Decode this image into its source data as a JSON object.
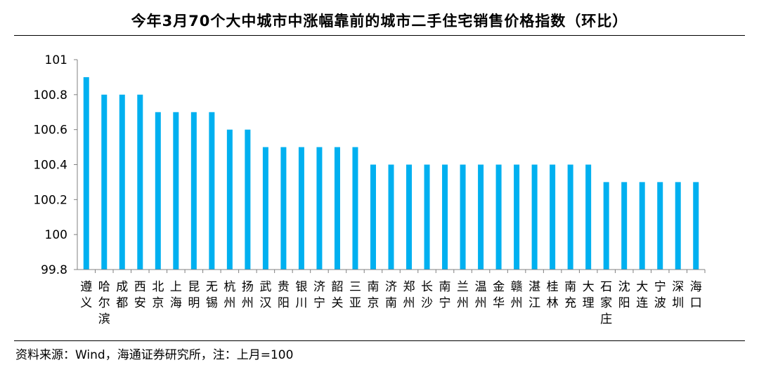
{
  "title": "今年3月70个大中城市中涨幅靠前的城市二手住宅销售价格指数（环比）",
  "footer": "资料来源：Wind，海通证券研究所，注：上月=100",
  "colors": {
    "bar": "#00B0F0",
    "axis": "#808080"
  },
  "chart_data": {
    "type": "bar",
    "title": "今年3月70个大中城市中涨幅靠前的城市二手住宅销售价格指数（环比）",
    "categories": [
      "遵义",
      "哈尔滨",
      "成都",
      "西安",
      "北京",
      "上海",
      "昆明",
      "无锡",
      "杭州",
      "扬州",
      "武汉",
      "贵阳",
      "银川",
      "济宁",
      "韶关",
      "三亚",
      "南京",
      "济南",
      "郑州",
      "长沙",
      "南宁",
      "兰州",
      "温州",
      "金华",
      "赣州",
      "湛江",
      "桂林",
      "南充",
      "大理",
      "石家庄",
      "沈阳",
      "大连",
      "宁波",
      "深圳",
      "海口"
    ],
    "values": [
      100.9,
      100.8,
      100.8,
      100.8,
      100.7,
      100.7,
      100.7,
      100.7,
      100.6,
      100.6,
      100.5,
      100.5,
      100.5,
      100.5,
      100.5,
      100.5,
      100.4,
      100.4,
      100.4,
      100.4,
      100.4,
      100.4,
      100.4,
      100.4,
      100.4,
      100.4,
      100.4,
      100.4,
      100.4,
      100.3,
      100.3,
      100.3,
      100.3,
      100.3,
      100.3
    ],
    "ylim": [
      99.8,
      101
    ],
    "yticks": [
      "99.8",
      "100",
      "100.2",
      "100.4",
      "100.6",
      "100.8",
      "101"
    ],
    "xlabel": "",
    "ylabel": "",
    "grid": false,
    "legend": "none"
  }
}
